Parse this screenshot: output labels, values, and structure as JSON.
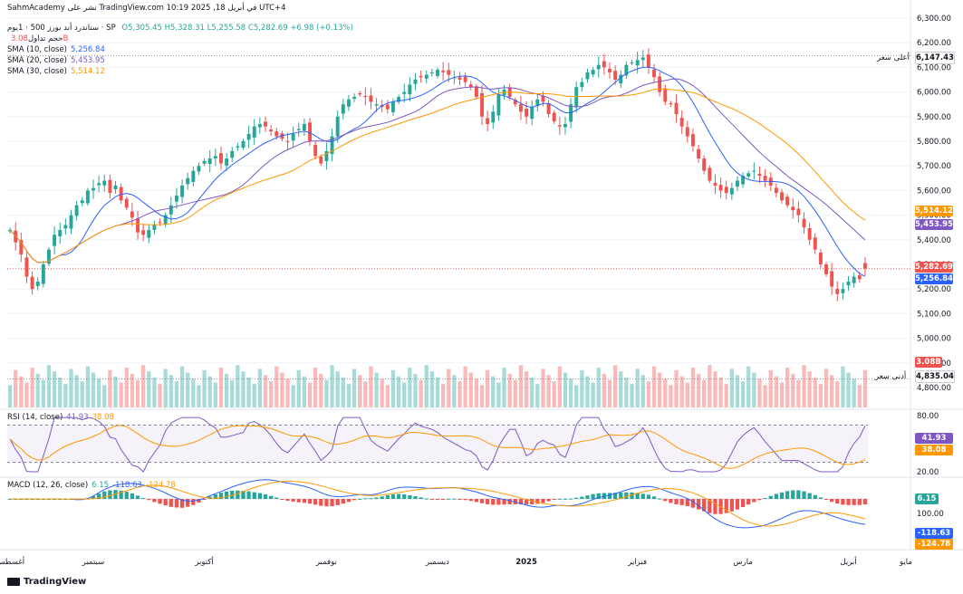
{
  "header": {
    "line1": "SahmAcademy نشر على TradingView.com في أبريل 18, 2025 10:19 UTC+4",
    "line2_name": "ستاندرد أند بورز 500 · 1يوم · SP",
    "line2_ohlc": "O5,305.45 H5,328.31 L5,255.58 C5,282.69 +6.98 (+0.13%)",
    "volume_label": "حجم تداول",
    "volume_value": "3.08B",
    "sma10_label": "SMA (10, close)",
    "sma10_value": "5,256.84",
    "sma20_label": "SMA (20, close)",
    "sma20_value": "5,453.95",
    "sma30_label": "SMA (30, close)",
    "sma30_value": "5,514.12"
  },
  "labels": {
    "high_label": "أعلى سعر",
    "high_value": "6,147.43",
    "low_label": "أدنى سعر",
    "low_value": "4,835.04",
    "price_close": "5,282.69",
    "sma10": "5,256.84",
    "sma20": "5,453.95",
    "sma30": "5,514.12",
    "vol": "3.08B",
    "rsi_value": "41.93",
    "rsi_ma": "38.08",
    "macd_hist": "6.15",
    "macd_line": "-118.63",
    "macd_signal": "-124.78"
  },
  "rsi_header": {
    "label": "RSI (14, close)",
    "v1": "41.93",
    "v2": "38.08"
  },
  "macd_header": {
    "label": "MACD (12, 26, close)",
    "v1": "6.15",
    "v2": "-118.63",
    "v3": "-124.78"
  },
  "footer": {
    "brand": "TradingView"
  },
  "colors": {
    "up": "#26a69a",
    "down": "#ef5350",
    "sma10": "#2962ff",
    "sma20": "#7e57c2",
    "sma30": "#ff9800"
  },
  "chart_data": {
    "type": "candlestick",
    "symbol": "SP",
    "interval": "1D",
    "price_axis_ticks": [
      "6,300.00",
      "6,200.00",
      "6,100.00",
      "6,000.00",
      "5,900.00",
      "5,800.00",
      "5,700.00",
      "5,600.00",
      "5,500.00",
      "5,400.00",
      "5,300.00",
      "5,200.00",
      "5,100.00",
      "5,000.00",
      "4,900.00",
      "4,800.00"
    ],
    "ylim": [
      4800,
      6300
    ],
    "x_tick_labels": [
      "أغسطس",
      "سبتمبر",
      "أكتوبر",
      "نوفمبر",
      "ديسمبر",
      "2025",
      "فبراير",
      "مارس",
      "أبريل",
      "مايو"
    ],
    "month_index": [
      0,
      15,
      35,
      57,
      77,
      93,
      113,
      132,
      151,
      167
    ],
    "close": [
      5440,
      5390,
      5340,
      5250,
      5200,
      5230,
      5300,
      5360,
      5420,
      5440,
      5460,
      5500,
      5540,
      5560,
      5600,
      5610,
      5630,
      5640,
      5590,
      5620,
      5560,
      5530,
      5490,
      5430,
      5420,
      5440,
      5460,
      5470,
      5500,
      5540,
      5580,
      5620,
      5650,
      5680,
      5700,
      5720,
      5730,
      5740,
      5710,
      5730,
      5760,
      5780,
      5800,
      5830,
      5860,
      5870,
      5860,
      5840,
      5820,
      5810,
      5800,
      5830,
      5850,
      5870,
      5800,
      5740,
      5710,
      5760,
      5820,
      5900,
      5950,
      5970,
      5980,
      5990,
      5980,
      5960,
      5950,
      5940,
      5930,
      5960,
      5980,
      6000,
      6030,
      6050,
      6060,
      6070,
      6080,
      6090,
      6080,
      6070,
      6060,
      6050,
      6040,
      6020,
      5980,
      5900,
      5870,
      5920,
      5990,
      6010,
      5980,
      5950,
      5920,
      5900,
      5940,
      5970,
      5960,
      5910,
      5880,
      5860,
      5870,
      5950,
      6020,
      6040,
      6080,
      6090,
      6110,
      6100,
      6080,
      6050,
      6070,
      6110,
      6120,
      6130,
      6140,
      6100,
      6060,
      6000,
      5960,
      5950,
      5910,
      5860,
      5820,
      5780,
      5730,
      5680,
      5640,
      5620,
      5600,
      5590,
      5610,
      5640,
      5660,
      5670,
      5680,
      5660,
      5640,
      5620,
      5590,
      5560,
      5540,
      5520,
      5500,
      5450,
      5400,
      5360,
      5300,
      5260,
      5210,
      5180,
      5200,
      5230,
      5250,
      5240,
      5283
    ],
    "sma10_last": 5256.84,
    "sma20_last": 5453.95,
    "sma30_last": 5514.12,
    "high_marker": 6147.43,
    "low_marker": 4835.04,
    "last": {
      "open": 5305.45,
      "high": 5328.31,
      "low": 5255.58,
      "close": 5282.69,
      "change": 6.98,
      "change_pct": 0.13
    },
    "volume_last": "3.08B",
    "rsi": {
      "ylim": [
        20,
        80
      ],
      "ticks": [
        "80.00",
        "20.00"
      ],
      "bands": [
        30,
        70
      ],
      "last": 41.93,
      "ma_last": 38.08
    },
    "macd": {
      "ticks": [
        "100.00"
      ],
      "hist_last": 6.15,
      "macd_last": -118.63,
      "signal_last": -124.78
    }
  }
}
